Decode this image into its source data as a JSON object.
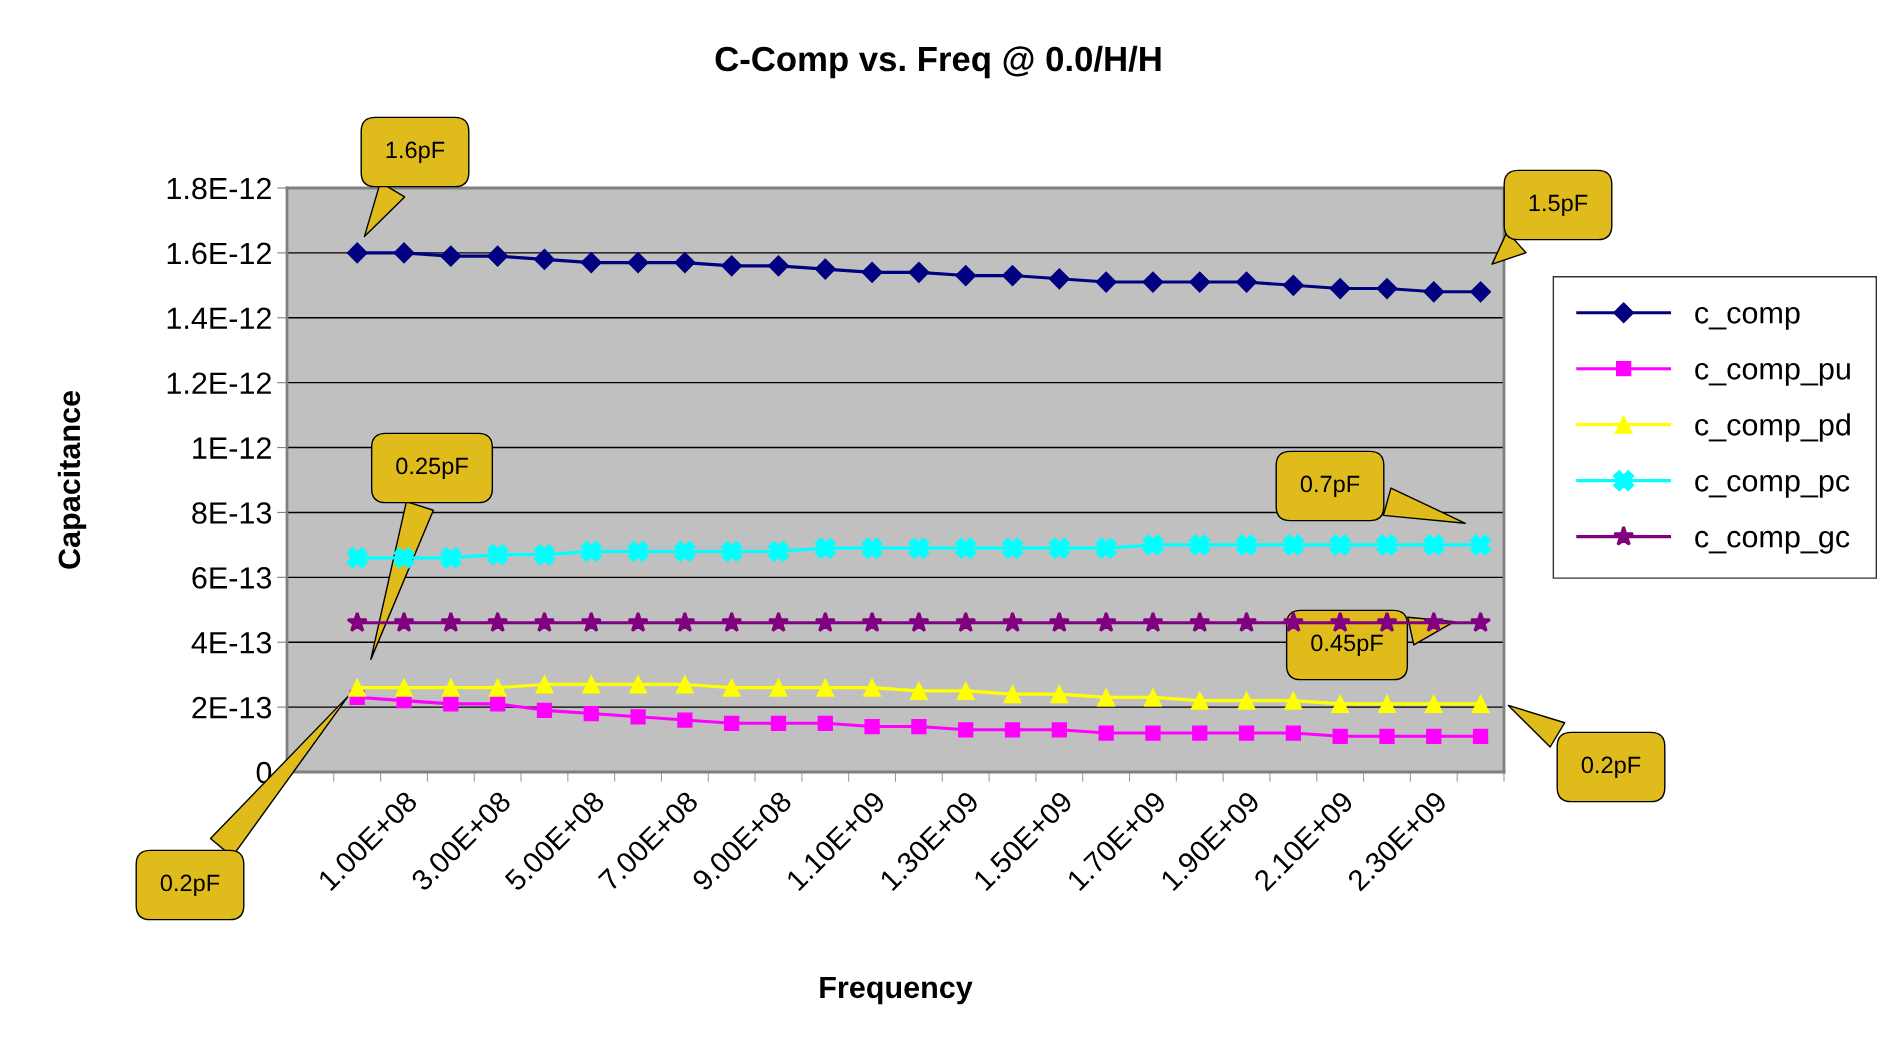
{
  "chart_data": {
    "type": "line",
    "title": "C-Comp vs. Freq @ 0.0/H/H",
    "xlabel": "Frequency",
    "ylabel": "Capacitance",
    "categories": [
      null,
      null,
      "1.00E+08",
      null,
      "3.00E+08",
      null,
      "5.00E+08",
      null,
      "7.00E+08",
      null,
      "9.00E+08",
      null,
      "1.10E+09",
      null,
      "1.30E+09",
      null,
      "1.50E+09",
      null,
      "1.70E+09",
      null,
      "1.90E+09",
      null,
      "2.10E+09",
      null,
      "2.30E+09",
      null
    ],
    "series": [
      {
        "name": "c_comp",
        "color": "#000080",
        "marker": "diamond",
        "values": [
          null,
          1.6e-12,
          1.6e-12,
          1.59e-12,
          1.59e-12,
          1.58e-12,
          1.57e-12,
          1.57e-12,
          1.57e-12,
          1.56e-12,
          1.56e-12,
          1.55e-12,
          1.54e-12,
          1.54e-12,
          1.53e-12,
          1.53e-12,
          1.52e-12,
          1.51e-12,
          1.51e-12,
          1.51e-12,
          1.51e-12,
          1.5e-12,
          1.49e-12,
          1.49e-12,
          1.48e-12,
          1.48e-12
        ]
      },
      {
        "name": "c_comp_pu",
        "color": "#ff00ff",
        "marker": "square",
        "values": [
          null,
          2.3e-13,
          2.2e-13,
          2.1e-13,
          2.1e-13,
          1.9e-13,
          1.8e-13,
          1.7e-13,
          1.6e-13,
          1.5e-13,
          1.5e-13,
          1.5e-13,
          1.4e-13,
          1.4e-13,
          1.3e-13,
          1.3e-13,
          1.3e-13,
          1.2e-13,
          1.2e-13,
          1.2e-13,
          1.2e-13,
          1.2e-13,
          1.1e-13,
          1.1e-13,
          1.1e-13,
          1.1e-13
        ]
      },
      {
        "name": "c_comp_pd",
        "color": "#ffff00",
        "marker": "triangle",
        "values": [
          null,
          2.6e-13,
          2.6e-13,
          2.6e-13,
          2.6e-13,
          2.7e-13,
          2.7e-13,
          2.7e-13,
          2.7e-13,
          2.6e-13,
          2.6e-13,
          2.6e-13,
          2.6e-13,
          2.5e-13,
          2.5e-13,
          2.4e-13,
          2.4e-13,
          2.3e-13,
          2.3e-13,
          2.2e-13,
          2.2e-13,
          2.2e-13,
          2.1e-13,
          2.1e-13,
          2.1e-13,
          2.1e-13
        ]
      },
      {
        "name": "c_comp_pc",
        "color": "#00ffff",
        "marker": "cross",
        "values": [
          null,
          6.6e-13,
          6.6e-13,
          6.6e-13,
          6.7e-13,
          6.7e-13,
          6.8e-13,
          6.8e-13,
          6.8e-13,
          6.8e-13,
          6.8e-13,
          6.9e-13,
          6.9e-13,
          6.9e-13,
          6.9e-13,
          6.9e-13,
          6.9e-13,
          6.9e-13,
          7e-13,
          7e-13,
          7e-13,
          7e-13,
          7e-13,
          7e-13,
          7e-13,
          7e-13
        ]
      },
      {
        "name": "c_comp_gc",
        "color": "#800080",
        "marker": "star",
        "values": [
          null,
          4.6e-13,
          4.6e-13,
          4.6e-13,
          4.6e-13,
          4.6e-13,
          4.6e-13,
          4.6e-13,
          4.6e-13,
          4.6e-13,
          4.6e-13,
          4.6e-13,
          4.6e-13,
          4.6e-13,
          4.6e-13,
          4.6e-13,
          4.6e-13,
          4.6e-13,
          4.6e-13,
          4.6e-13,
          4.6e-13,
          4.6e-13,
          4.6e-13,
          4.6e-13,
          4.6e-13,
          4.6e-13
        ]
      }
    ],
    "ylim": [
      0,
      1.8e-12
    ],
    "yticks": [
      {
        "value": 0,
        "label": "0"
      },
      {
        "value": 2e-13,
        "label": "2E-13"
      },
      {
        "value": 4e-13,
        "label": "4E-13"
      },
      {
        "value": 6e-13,
        "label": "6E-13"
      },
      {
        "value": 8e-13,
        "label": "8E-13"
      },
      {
        "value": 1e-12,
        "label": "1E-12"
      },
      {
        "value": 1.2e-12,
        "label": "1.2E-12"
      },
      {
        "value": 1.4e-12,
        "label": "1.4E-12"
      },
      {
        "value": 1.6e-12,
        "label": "1.6E-12"
      },
      {
        "value": 1.8e-12,
        "label": "1.8E-12"
      }
    ],
    "grid": "y",
    "legend": "right",
    "line_style": "solid",
    "annotations": [
      "1.6pF",
      "1.5pF",
      "0.25pF",
      "0.2pF",
      "0.7pF",
      "0.45pF",
      "0.2pF"
    ]
  }
}
